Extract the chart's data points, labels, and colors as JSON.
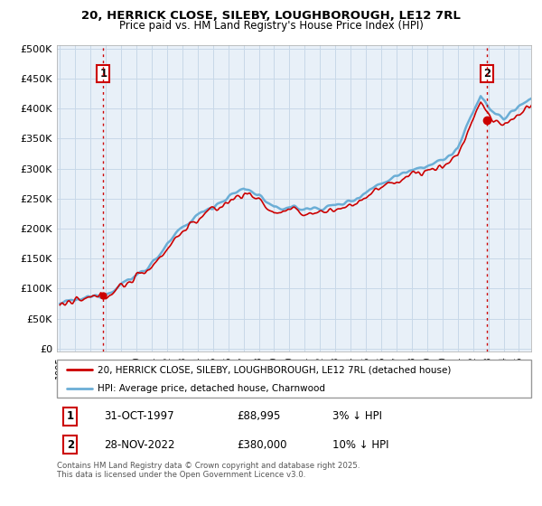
{
  "title1": "20, HERRICK CLOSE, SILEBY, LOUGHBOROUGH, LE12 7RL",
  "title2": "Price paid vs. HM Land Registry's House Price Index (HPI)",
  "ylabel_ticks": [
    "£0",
    "£50K",
    "£100K",
    "£150K",
    "£200K",
    "£250K",
    "£300K",
    "£350K",
    "£400K",
    "£450K",
    "£500K"
  ],
  "ytick_values": [
    0,
    50000,
    100000,
    150000,
    200000,
    250000,
    300000,
    350000,
    400000,
    450000,
    500000
  ],
  "ylim": [
    -5000,
    505000
  ],
  "xlim_start": 1994.8,
  "xlim_end": 2025.8,
  "legend_line1": "20, HERRICK CLOSE, SILEBY, LOUGHBOROUGH, LE12 7RL (detached house)",
  "legend_line2": "HPI: Average price, detached house, Charnwood",
  "annotation1_label": "1",
  "annotation1_date": "31-OCT-1997",
  "annotation1_price": "£88,995",
  "annotation1_hpi": "3% ↓ HPI",
  "annotation2_label": "2",
  "annotation2_date": "28-NOV-2022",
  "annotation2_price": "£380,000",
  "annotation2_hpi": "10% ↓ HPI",
  "footer": "Contains HM Land Registry data © Crown copyright and database right 2025.\nThis data is licensed under the Open Government Licence v3.0.",
  "sale1_x": 1997.83,
  "sale1_y": 88995,
  "sale2_x": 2022.91,
  "sale2_y": 380000,
  "hpi_color": "#6BAED6",
  "sale_color": "#CC0000",
  "vline_color": "#CC0000",
  "grid_color": "#C8D8E8",
  "plot_bg_color": "#E8F0F8",
  "bg_color": "#FFFFFF",
  "annotation_box_color": "#CC0000"
}
